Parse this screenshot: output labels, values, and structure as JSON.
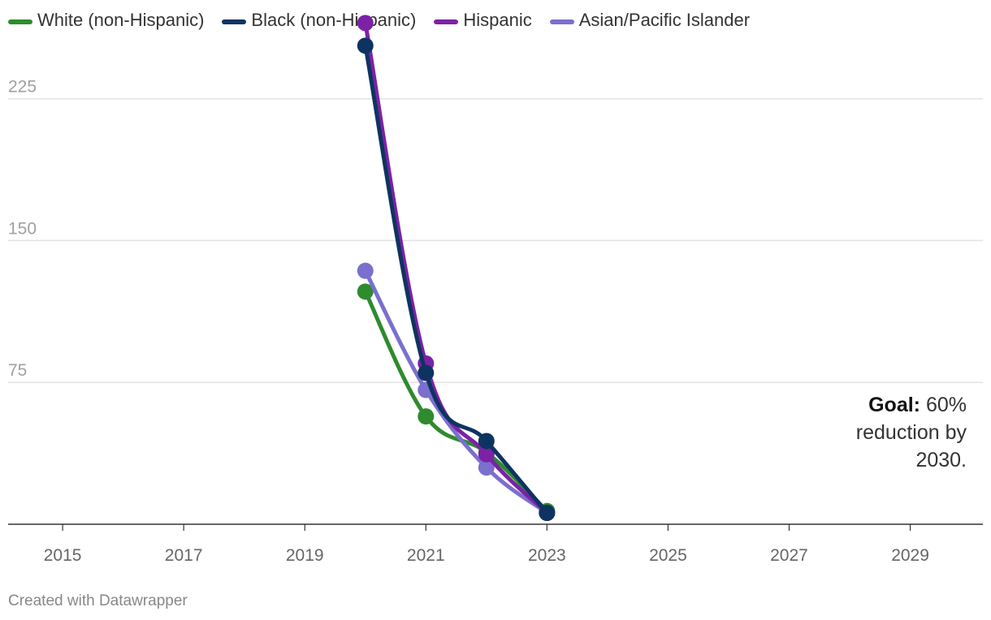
{
  "chart_data": {
    "type": "line",
    "title": "",
    "xlabel": "",
    "ylabel": "",
    "xlim": [
      2014.1,
      2030.2
    ],
    "ylim": [
      0,
      260
    ],
    "y_ticks": [
      75,
      150,
      225
    ],
    "x_ticks": [
      2015,
      2017,
      2019,
      2021,
      2023,
      2025,
      2027,
      2029
    ],
    "grid": true,
    "legend_position": "top-left",
    "series": [
      {
        "name": "White (non-Hispanic)",
        "color": "#2e8b2e",
        "x": [
          2020,
          2021,
          2022,
          2023
        ],
        "y": [
          123,
          57,
          38,
          7
        ]
      },
      {
        "name": "Asian/Pacific Islander",
        "color": "#7b6fcf",
        "x": [
          2020,
          2021,
          2022,
          2023
        ],
        "y": [
          134,
          71,
          30,
          6
        ]
      },
      {
        "name": "Hispanic",
        "color": "#7b22a6",
        "x": [
          2020,
          2021,
          2022,
          2023
        ],
        "y": [
          265,
          85,
          37,
          6
        ]
      },
      {
        "name": "Black (non-Hispanic)",
        "color": "#0d3461",
        "x": [
          2020,
          2021,
          2022,
          2023
        ],
        "y": [
          253,
          80,
          44,
          6
        ]
      }
    ],
    "legend_order": [
      "White (non-Hispanic)",
      "Black (non-Hispanic)",
      "Hispanic",
      "Asian/Pacific Islander"
    ]
  },
  "annotation": {
    "bold": "Goal:",
    "text1": " 60%",
    "text2": "reduction by",
    "text3": "2030."
  },
  "footer": {
    "credit": "Created with Datawrapper"
  }
}
